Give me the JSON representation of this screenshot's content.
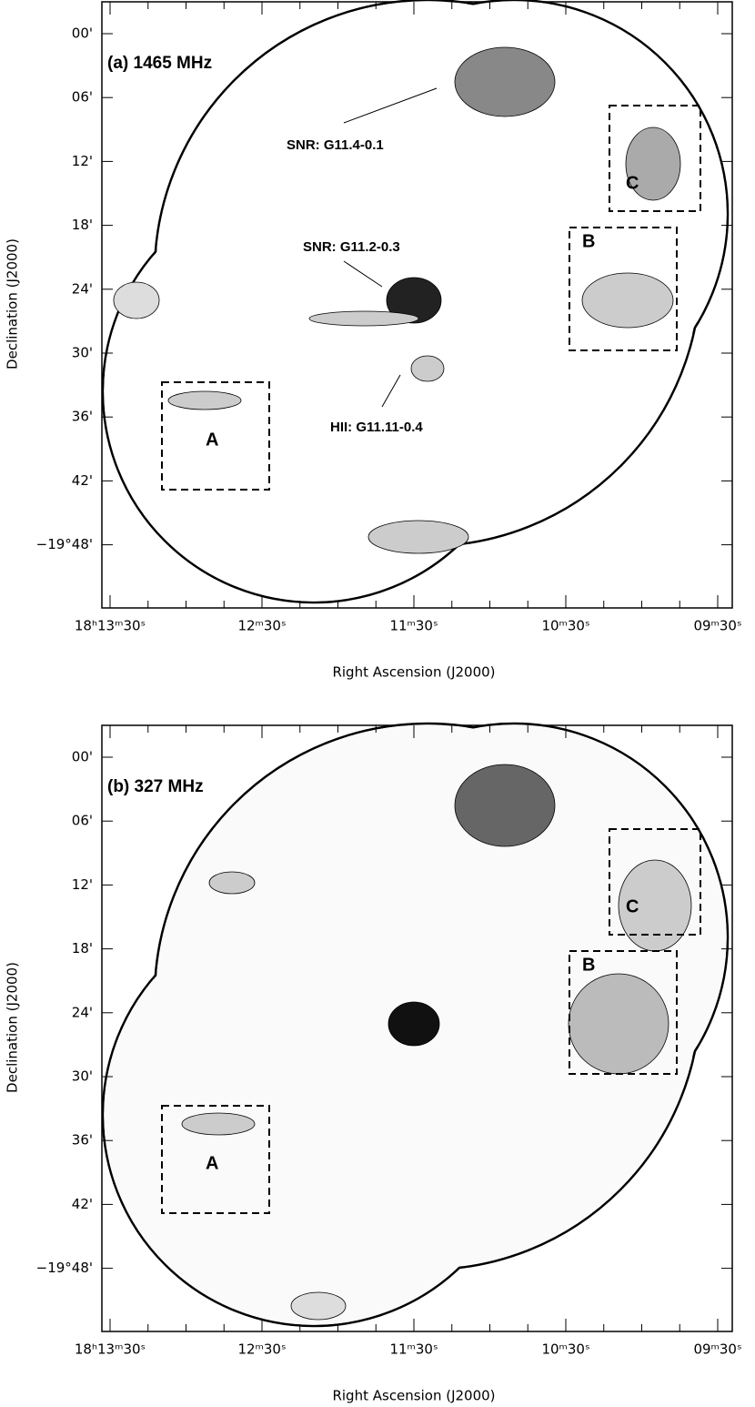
{
  "panels": [
    {
      "label": "(a) 1465 MHz",
      "annotations": [
        "SNR: G11.4-0.1",
        "SNR: G11.2-0.3",
        "HII: G11.11-0.4"
      ],
      "regions": [
        "A",
        "B",
        "C"
      ],
      "yticks": [
        "00'",
        "06'",
        "12'",
        "18'",
        "24'",
        "30'",
        "36'",
        "42'",
        "−19°48'"
      ],
      "xticks": [
        "18ʰ13ᵐ30ˢ",
        "12ᵐ30ˢ",
        "11ᵐ30ˢ",
        "10ᵐ30ˢ",
        "09ᵐ30ˢ"
      ],
      "ylabel": "Declination (J2000)",
      "xlabel": "Right Ascension (J2000)"
    },
    {
      "label": "(b) 327 MHz",
      "annotations": [],
      "regions": [
        "A",
        "B",
        "C"
      ],
      "yticks": [
        "00'",
        "06'",
        "12'",
        "18'",
        "24'",
        "30'",
        "36'",
        "42'",
        "−19°48'"
      ],
      "xticks": [
        "18ʰ13ᵐ30ˢ",
        "12ᵐ30ˢ",
        "11ᵐ30ˢ",
        "10ᵐ30ˢ",
        "09ᵐ30ˢ"
      ],
      "ylabel": "Declination (J2000)",
      "xlabel": "Right Ascension (J2000)"
    }
  ]
}
